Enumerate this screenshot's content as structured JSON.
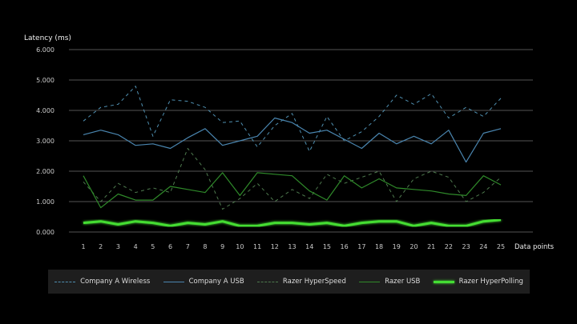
{
  "chart_data": {
    "type": "line",
    "ylabel": "Latency (ms)",
    "xlabel": "Data points",
    "ylim": [
      0,
      6
    ],
    "yticks": [
      "0.000",
      "1.000",
      "2.000",
      "3.000",
      "4.000",
      "5.000",
      "6.000"
    ],
    "x": [
      1,
      2,
      3,
      4,
      5,
      6,
      7,
      8,
      9,
      10,
      11,
      12,
      13,
      14,
      15,
      16,
      17,
      18,
      19,
      20,
      21,
      22,
      23,
      24,
      25
    ],
    "grid": true,
    "legend_position": "bottom",
    "series": [
      {
        "name": "Company A Wireless",
        "color": "#4f8fb0",
        "dash": true,
        "width": 1,
        "values": [
          3.65,
          4.1,
          4.2,
          4.8,
          3.15,
          4.35,
          4.3,
          4.1,
          3.6,
          3.65,
          2.8,
          3.5,
          3.9,
          2.65,
          3.8,
          3.0,
          3.3,
          3.8,
          4.5,
          4.2,
          4.55,
          3.75,
          4.1,
          3.8,
          4.4
        ]
      },
      {
        "name": "Company A USB",
        "color": "#4a86b0",
        "dash": false,
        "width": 1.2,
        "values": [
          3.2,
          3.35,
          3.2,
          2.85,
          2.9,
          2.75,
          3.1,
          3.4,
          2.85,
          3.0,
          3.15,
          3.75,
          3.6,
          3.25,
          3.35,
          3.05,
          2.75,
          3.25,
          2.9,
          3.15,
          2.9,
          3.35,
          2.3,
          3.25,
          3.4
        ]
      },
      {
        "name": "Razer HyperSpeed",
        "color": "#4e7a4e",
        "dash": true,
        "width": 1,
        "values": [
          1.65,
          1.0,
          1.6,
          1.3,
          1.45,
          1.3,
          2.75,
          2.05,
          0.75,
          1.1,
          1.6,
          1.0,
          1.4,
          1.1,
          1.9,
          1.6,
          1.8,
          2.0,
          1.0,
          1.75,
          2.0,
          1.8,
          1.0,
          1.3,
          1.8
        ]
      },
      {
        "name": "Razer USB",
        "color": "#2f8a2a",
        "dash": false,
        "width": 1.2,
        "values": [
          1.85,
          0.8,
          1.25,
          1.05,
          1.05,
          1.5,
          1.4,
          1.3,
          1.95,
          1.2,
          1.95,
          1.9,
          1.85,
          1.35,
          1.05,
          1.85,
          1.45,
          1.75,
          1.45,
          1.4,
          1.35,
          1.25,
          1.2,
          1.85,
          1.55
        ]
      },
      {
        "name": "Razer HyperPolling",
        "color": "#44dd33",
        "dash": false,
        "width": 3,
        "values": [
          0.3,
          0.35,
          0.25,
          0.35,
          0.3,
          0.2,
          0.3,
          0.25,
          0.35,
          0.2,
          0.2,
          0.3,
          0.3,
          0.25,
          0.3,
          0.2,
          0.3,
          0.35,
          0.35,
          0.2,
          0.3,
          0.2,
          0.2,
          0.35,
          0.4
        ]
      }
    ]
  }
}
